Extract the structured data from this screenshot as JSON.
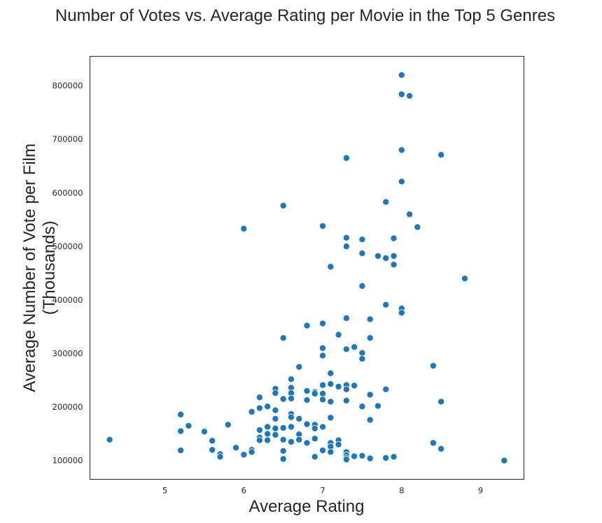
{
  "chart_data": {
    "type": "scatter",
    "title": "Number of Votes vs. Average Rating per Movie in the Top 5 Genres",
    "xlabel": "Average Rating",
    "ylabel_lines": [
      "Average Number of Vote per Film",
      "(Thousands)"
    ],
    "xlim": [
      4.05,
      9.55
    ],
    "ylim": [
      65000,
      855000
    ],
    "xticks": [
      5,
      6,
      7,
      8,
      9
    ],
    "yticks": [
      100000,
      200000,
      300000,
      400000,
      500000,
      600000,
      700000,
      800000
    ],
    "grid": false,
    "color": "#1f77b4",
    "points": [
      [
        8.0,
        820000
      ],
      [
        8.0,
        784000
      ],
      [
        8.1,
        781000
      ],
      [
        8.0,
        680000
      ],
      [
        8.5,
        671000
      ],
      [
        7.3,
        665000
      ],
      [
        8.0,
        621000
      ],
      [
        7.8,
        583000
      ],
      [
        6.5,
        576000
      ],
      [
        8.1,
        560000
      ],
      [
        7.0,
        538000
      ],
      [
        8.2,
        536000
      ],
      [
        6.0,
        533000
      ],
      [
        7.3,
        516000
      ],
      [
        7.9,
        515000
      ],
      [
        7.5,
        513000
      ],
      [
        7.3,
        500000
      ],
      [
        7.5,
        487000
      ],
      [
        7.7,
        482000
      ],
      [
        7.9,
        482000
      ],
      [
        7.8,
        478000
      ],
      [
        7.9,
        466000
      ],
      [
        7.1,
        462000
      ],
      [
        8.8,
        440000
      ],
      [
        7.5,
        426000
      ],
      [
        7.8,
        391000
      ],
      [
        8.0,
        384000
      ],
      [
        8.0,
        376000
      ],
      [
        7.3,
        366000
      ],
      [
        7.6,
        364000
      ],
      [
        7.0,
        356000
      ],
      [
        6.8,
        352000
      ],
      [
        7.2,
        335000
      ],
      [
        6.5,
        329000
      ],
      [
        7.6,
        329000
      ],
      [
        7.4,
        312000
      ],
      [
        7.0,
        310000
      ],
      [
        7.3,
        308000
      ],
      [
        7.5,
        301000
      ],
      [
        7.0,
        296000
      ],
      [
        7.5,
        290000
      ],
      [
        8.4,
        277000
      ],
      [
        6.7,
        275000
      ],
      [
        7.1,
        263000
      ],
      [
        6.6,
        252000
      ],
      [
        7.1,
        243000
      ],
      [
        7.0,
        241000
      ],
      [
        7.3,
        241000
      ],
      [
        7.4,
        240000
      ],
      [
        7.2,
        238000
      ],
      [
        6.6,
        236000
      ],
      [
        6.4,
        234000
      ],
      [
        7.3,
        233000
      ],
      [
        7.8,
        233000
      ],
      [
        6.8,
        230000
      ],
      [
        6.9,
        228000
      ],
      [
        6.6,
        226000
      ],
      [
        6.4,
        226000
      ],
      [
        6.9,
        225000
      ],
      [
        7.0,
        225000
      ],
      [
        7.6,
        223000
      ],
      [
        6.2,
        218000
      ],
      [
        6.5,
        215000
      ],
      [
        6.8,
        213000
      ],
      [
        7.0,
        214000
      ],
      [
        7.3,
        212000
      ],
      [
        6.6,
        216000
      ],
      [
        7.1,
        210000
      ],
      [
        8.5,
        210000
      ],
      [
        7.7,
        202000
      ],
      [
        6.3,
        201000
      ],
      [
        7.5,
        201000
      ],
      [
        6.2,
        198000
      ],
      [
        6.4,
        194000
      ],
      [
        6.1,
        191000
      ],
      [
        5.2,
        186000
      ],
      [
        6.6,
        187000
      ],
      [
        6.6,
        181000
      ],
      [
        7.1,
        180000
      ],
      [
        6.4,
        178000
      ],
      [
        6.7,
        178000
      ],
      [
        7.6,
        176000
      ],
      [
        5.8,
        167000
      ],
      [
        6.8,
        168000
      ],
      [
        6.9,
        167000
      ],
      [
        5.3,
        165000
      ],
      [
        6.3,
        163000
      ],
      [
        6.4,
        160000
      ],
      [
        6.5,
        161000
      ],
      [
        6.6,
        163000
      ],
      [
        6.9,
        160000
      ],
      [
        7.0,
        163000
      ],
      [
        6.2,
        157000
      ],
      [
        5.2,
        155000
      ],
      [
        5.5,
        154000
      ],
      [
        6.3,
        150000
      ],
      [
        6.4,
        148000
      ],
      [
        6.7,
        149000
      ],
      [
        6.2,
        143000
      ],
      [
        6.2,
        138000
      ],
      [
        6.3,
        138000
      ],
      [
        6.5,
        139000
      ],
      [
        6.7,
        139000
      ],
      [
        6.9,
        141000
      ],
      [
        6.6,
        135000
      ],
      [
        6.8,
        133000
      ],
      [
        7.2,
        138000
      ],
      [
        7.1,
        133000
      ],
      [
        7.2,
        130000
      ],
      [
        4.3,
        139000
      ],
      [
        5.6,
        137000
      ],
      [
        8.4,
        133000
      ],
      [
        7.1,
        126000
      ],
      [
        8.5,
        122000
      ],
      [
        5.9,
        124000
      ],
      [
        6.1,
        120000
      ],
      [
        5.2,
        119000
      ],
      [
        5.6,
        120000
      ],
      [
        6.1,
        116000
      ],
      [
        6.5,
        118000
      ],
      [
        7.0,
        119000
      ],
      [
        7.1,
        116000
      ],
      [
        7.3,
        116000
      ],
      [
        5.7,
        112000
      ],
      [
        6.0,
        111000
      ],
      [
        7.3,
        110000
      ],
      [
        7.4,
        108000
      ],
      [
        7.5,
        109000
      ],
      [
        5.7,
        107000
      ],
      [
        6.9,
        107000
      ],
      [
        7.3,
        105000
      ],
      [
        7.6,
        104000
      ],
      [
        7.8,
        105000
      ],
      [
        7.9,
        107000
      ],
      [
        6.5,
        103000
      ],
      [
        7.3,
        102000
      ],
      [
        9.3,
        100000
      ]
    ]
  }
}
